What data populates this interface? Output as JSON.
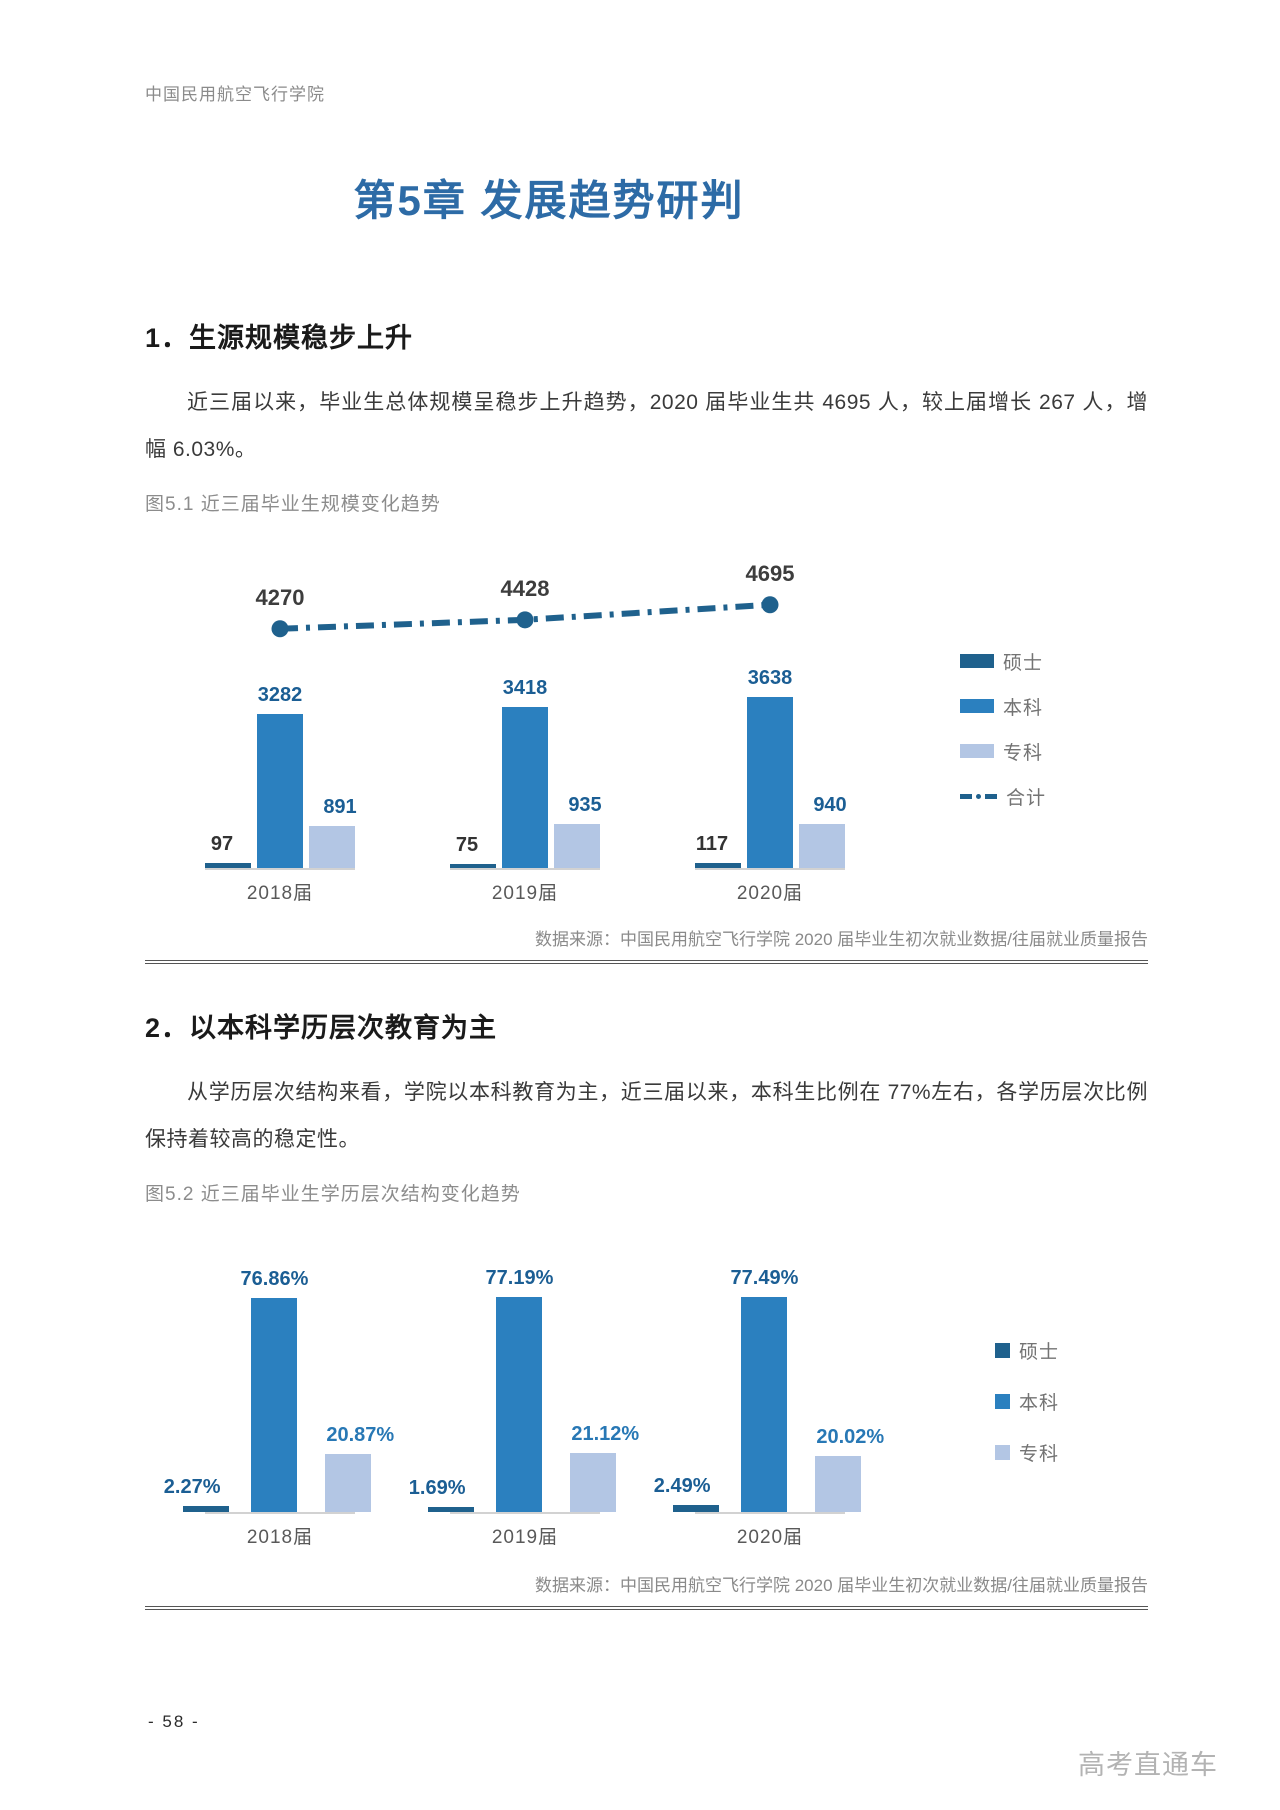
{
  "page": {
    "header": "中国民用航空飞行学院",
    "chapter_title": "第5章 发展趋势研判",
    "page_number": "- 58 -",
    "watermark": "高考直通车",
    "accent_color": "#2d6ba6"
  },
  "section1": {
    "heading": "1．生源规模稳步上升",
    "paragraph": "近三届以来，毕业生总体规模呈稳步上升趋势，2020 届毕业生共 4695 人，较上届增长 267 人，增幅 6.03%。",
    "figure_caption": "图5.1 近三届毕业生规模变化趋势",
    "data_source": "数据来源：中国民用航空飞行学院 2020 届毕业生初次就业数据/往届就业质量报告"
  },
  "section2": {
    "heading": "2．以本科学历层次教育为主",
    "paragraph": "从学历层次结构来看，学院以本科教育为主，近三届以来，本科生比例在 77%左右，各学历层次比例保持着较高的稳定性。",
    "figure_caption": "图5.2 近三届毕业生学历层次结构变化趋势",
    "data_source": "数据来源：中国民用航空飞行学院 2020 届毕业生初次就业数据/往届就业质量报告"
  },
  "chart_data": [
    {
      "id": "chart1",
      "type": "bar",
      "title": "近三届毕业生规模变化趋势",
      "categories": [
        "2018届",
        "2019届",
        "2020届"
      ],
      "series": [
        {
          "name": "硕士",
          "values": [
            97,
            75,
            117
          ],
          "labels": [
            "97",
            "75",
            "117"
          ],
          "color": "#1f618d",
          "label_color": "#333333"
        },
        {
          "name": "本科",
          "values": [
            3282,
            3418,
            3638
          ],
          "labels": [
            "3282",
            "3418",
            "3638"
          ],
          "color": "#2b80bf",
          "label_color": "#1b5e94"
        },
        {
          "name": "专科",
          "values": [
            891,
            935,
            940
          ],
          "labels": [
            "891",
            "935",
            "940"
          ],
          "color": "#b3c6e4",
          "label_color": "#1b5e94"
        }
      ],
      "line_series": {
        "name": "合计",
        "values": [
          4270,
          4428,
          4695
        ],
        "labels": [
          "4270",
          "4428",
          "4695"
        ],
        "color": "#1f618d",
        "label_color": "#3d3d3d",
        "style": "dash-dot"
      },
      "legend_position": "right",
      "grid": false,
      "value_axis": "hidden"
    },
    {
      "id": "chart2",
      "type": "bar",
      "title": "近三届毕业生学历层次结构变化趋势",
      "categories": [
        "2018届",
        "2019届",
        "2020届"
      ],
      "unit": "%",
      "series": [
        {
          "name": "硕士",
          "values": [
            2.27,
            1.69,
            2.49
          ],
          "labels": [
            "2.27%",
            "1.69%",
            "2.49%"
          ],
          "color": "#1f618d",
          "label_color": "#1b5e94"
        },
        {
          "name": "本科",
          "values": [
            76.86,
            77.19,
            77.49
          ],
          "labels": [
            "76.86%",
            "77.19%",
            "77.49%"
          ],
          "color": "#2b80bf",
          "label_color": "#1b5e94"
        },
        {
          "name": "专科",
          "values": [
            20.87,
            21.12,
            20.02
          ],
          "labels": [
            "20.87%",
            "21.12%",
            "20.02%"
          ],
          "color": "#b3c6e4",
          "label_color": "#2878b5"
        }
      ],
      "legend_position": "right",
      "grid": false,
      "value_axis": "hidden"
    }
  ]
}
